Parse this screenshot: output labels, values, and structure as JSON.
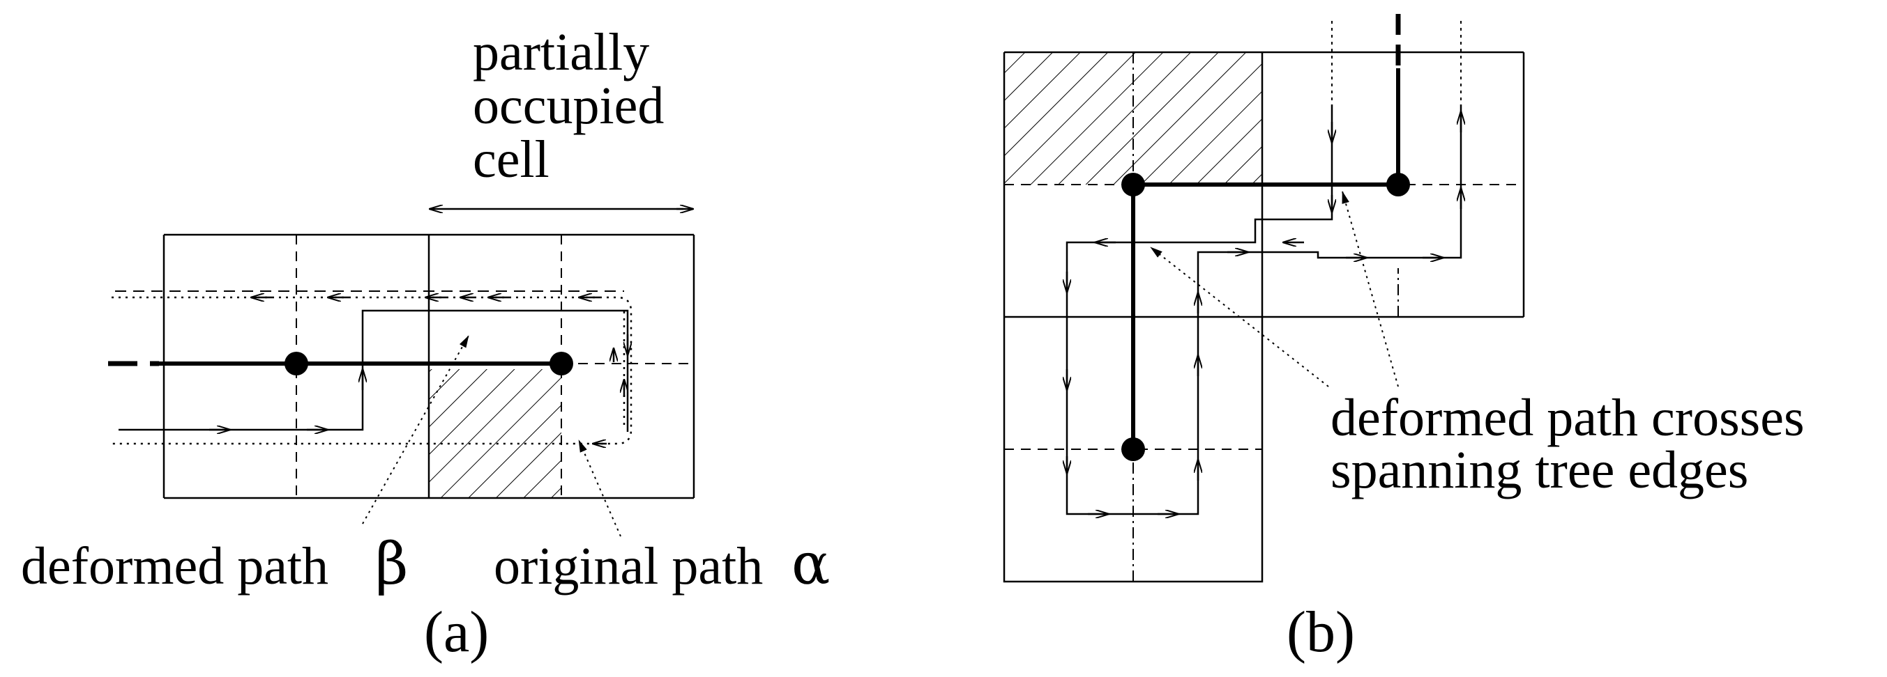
{
  "panel_a": {
    "caption": "(a)",
    "cell_label_lines": [
      "partially",
      "occupied",
      "cell"
    ],
    "deformed_label": "deformed path",
    "deformed_symbol": "β",
    "original_label": "original path",
    "original_symbol": "α"
  },
  "panel_b": {
    "caption": "(b)",
    "note_lines": [
      "deformed path crosses",
      "spanning tree edges"
    ]
  },
  "colors": {
    "ink": "#000000",
    "background": "#ffffff"
  }
}
